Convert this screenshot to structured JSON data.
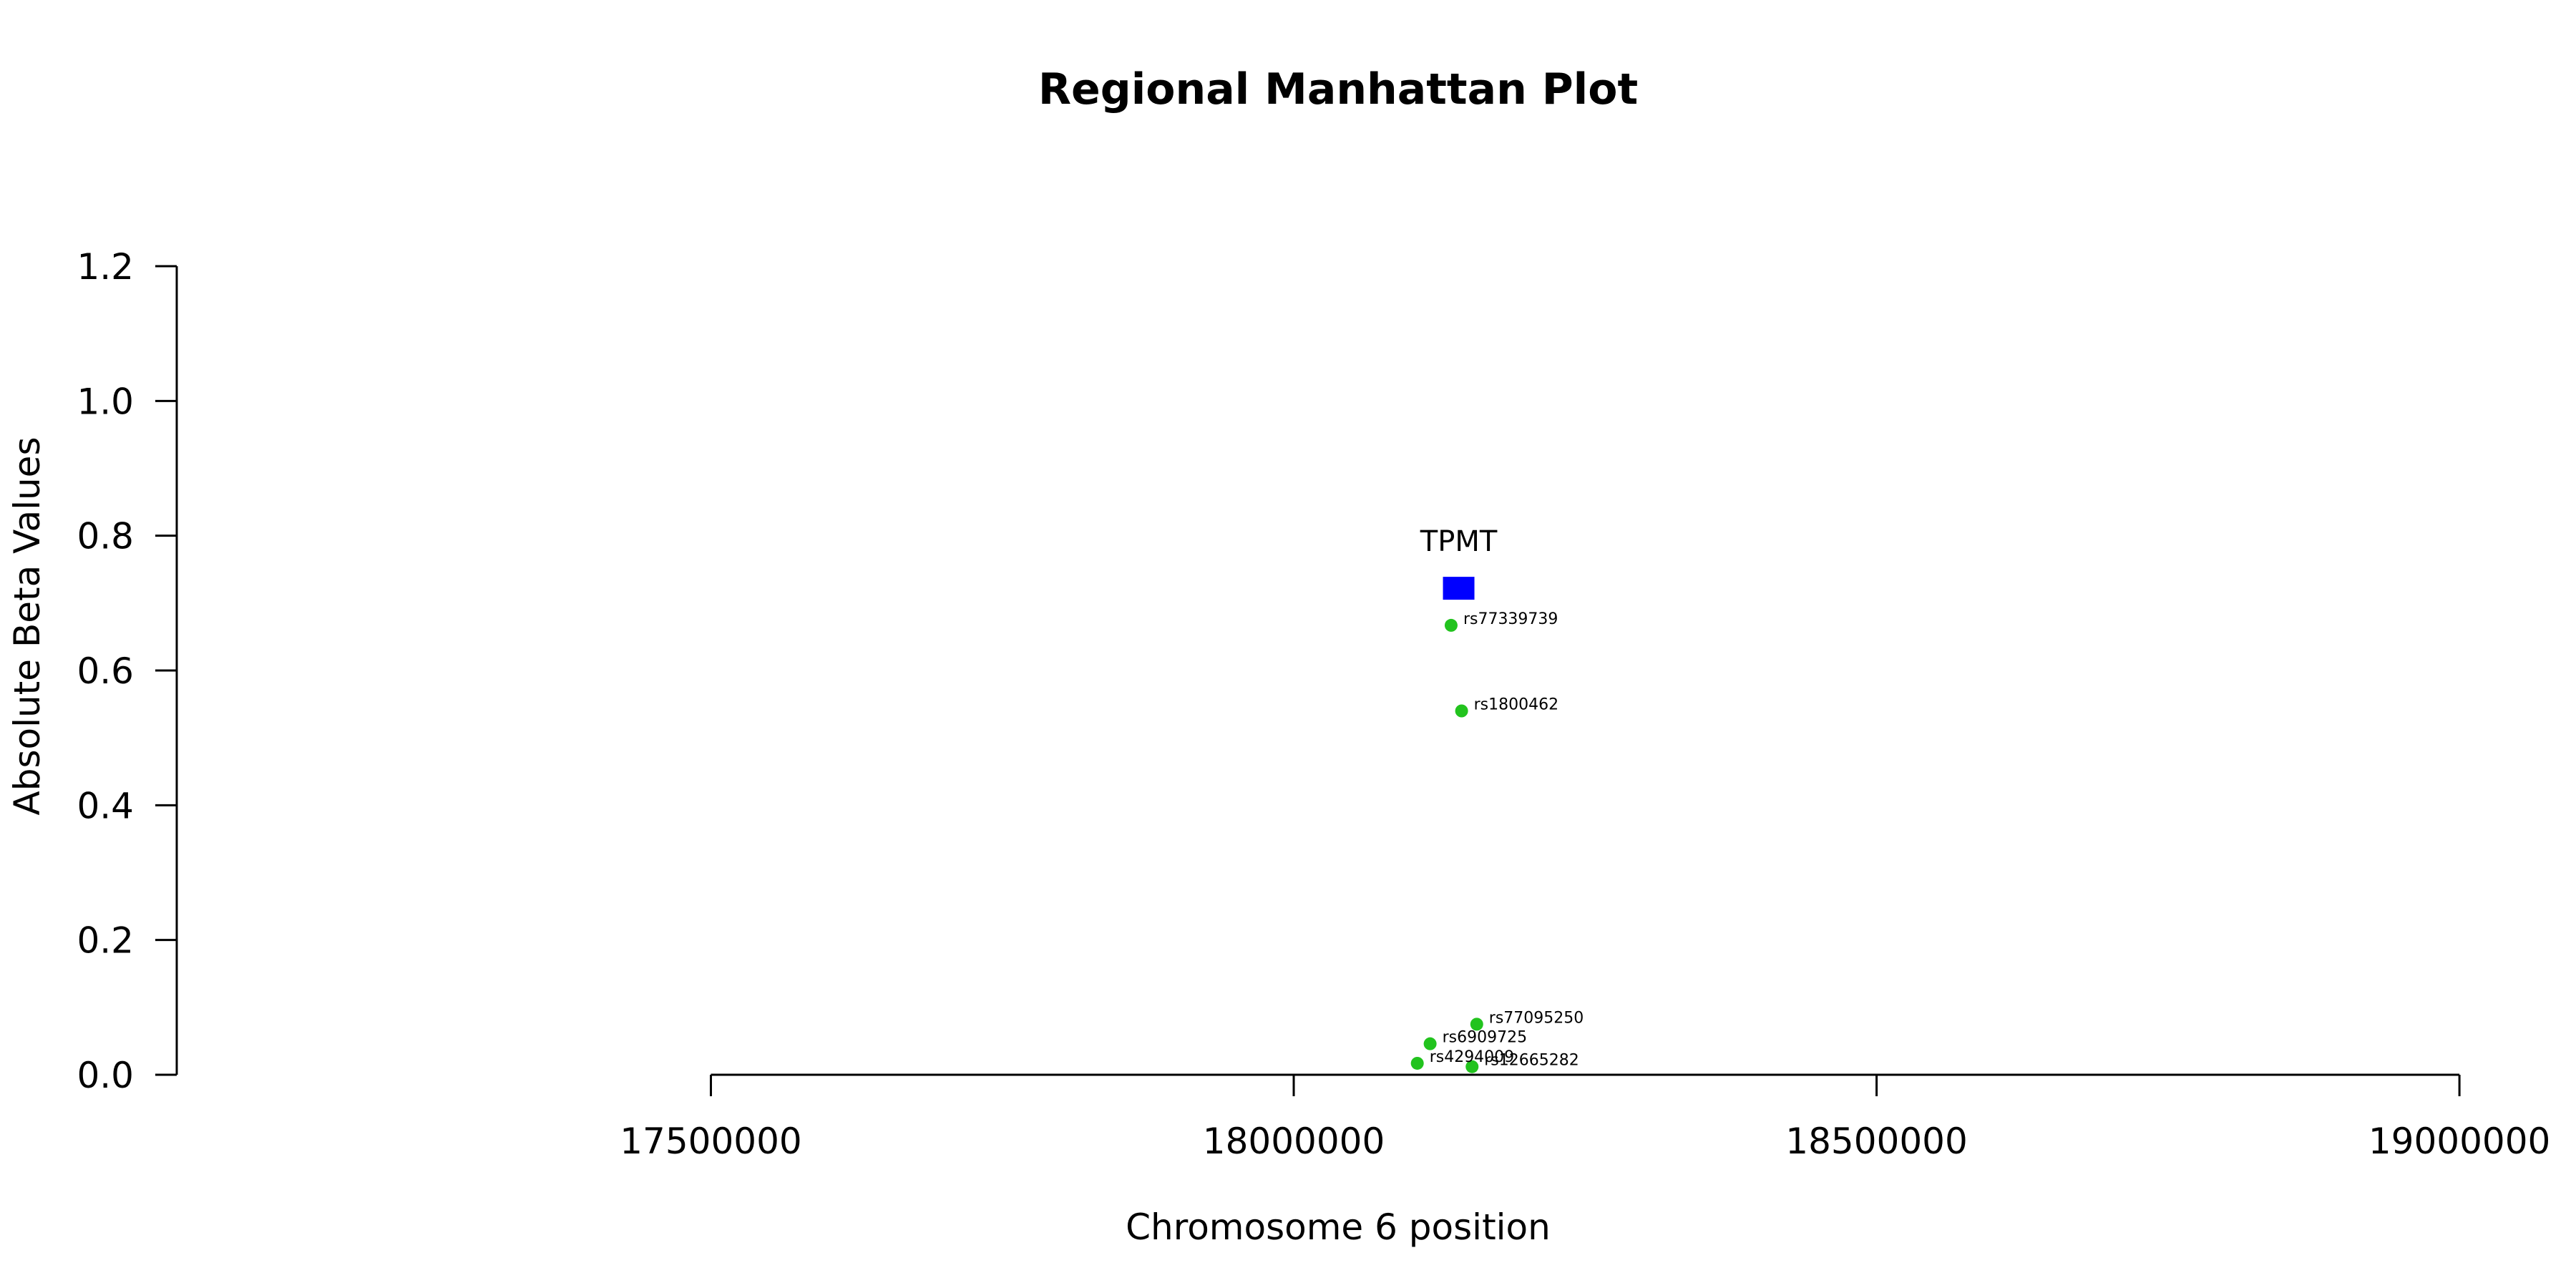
{
  "chart_data": {
    "type": "scatter",
    "title": "Regional Manhattan Plot",
    "xlabel": "Chromosome 6 position",
    "ylabel": "Absolute Beta Values",
    "xlim": [
      17105000,
      19100000
    ],
    "ylim": [
      0,
      1.2
    ],
    "x_ticks": [
      17500000,
      18000000,
      18500000,
      19000000
    ],
    "y_ticks": [
      0.0,
      0.2,
      0.4,
      0.6,
      0.8,
      1.0,
      1.2
    ],
    "y_tick_labels": [
      "0.0",
      "0.2",
      "0.4",
      "0.6",
      "0.8",
      "1.0",
      "1.2"
    ],
    "grid": false,
    "point_color": "#22c31e",
    "gene_color": "#0000ff",
    "series": [
      {
        "points": [
          {
            "label": "rs77339739",
            "x": 18135000,
            "y": 0.667
          },
          {
            "label": "rs1800462",
            "x": 18144000,
            "y": 0.54
          },
          {
            "label": "rs77095250",
            "x": 18157000,
            "y": 0.075
          },
          {
            "label": "rs6909725",
            "x": 18117000,
            "y": 0.046
          },
          {
            "label": "rs4294009",
            "x": 18106000,
            "y": 0.017
          },
          {
            "label": "rs12665282",
            "x": 18153000,
            "y": 0.012
          }
        ]
      }
    ],
    "genes": [
      {
        "name": "TPMT",
        "start": 18128000,
        "end": 18155000,
        "y": 0.722
      }
    ]
  }
}
